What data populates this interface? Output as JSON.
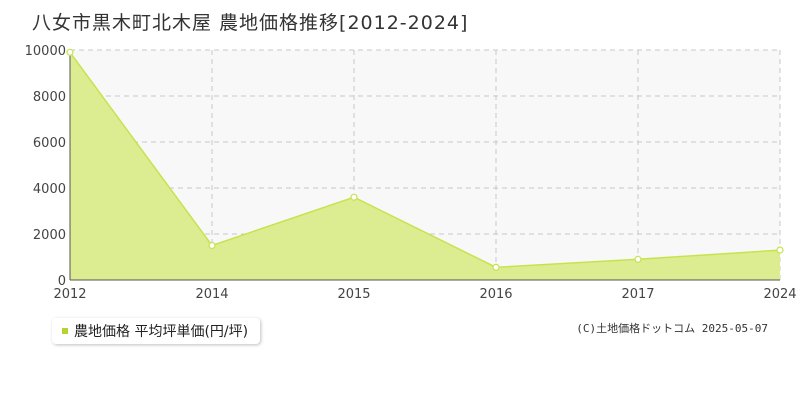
{
  "title": "八女市黒木町北木屋 農地価格推移[2012-2024]",
  "legend": {
    "label": "農地価格 平均坪単価(円/坪)"
  },
  "credit": "(C)土地価格ドットコム 2025-05-07",
  "colors": {
    "area_fill": "#dcec91",
    "line": "#c6e34f",
    "plot_bg": "#f8f8f8",
    "grid": "#c8c8c8",
    "legend_marker": "#b3d531"
  },
  "chart_data": {
    "type": "area",
    "title": "八女市黒木町北木屋 農地価格推移[2012-2024]",
    "xlabel": "",
    "ylabel": "",
    "x": [
      2012,
      2014,
      2015,
      2016,
      2017,
      2024
    ],
    "x_tick_labels": [
      "2012",
      "2014",
      "2015",
      "2016",
      "2017",
      "2024"
    ],
    "ylim": [
      0,
      10000
    ],
    "y_ticks": [
      0,
      2000,
      4000,
      6000,
      8000,
      10000
    ],
    "grid": true,
    "legend_position": "bottom-left",
    "series": [
      {
        "name": "農地価格 平均坪単価(円/坪)",
        "values": [
          9900,
          1500,
          3600,
          550,
          900,
          1300
        ]
      }
    ]
  }
}
